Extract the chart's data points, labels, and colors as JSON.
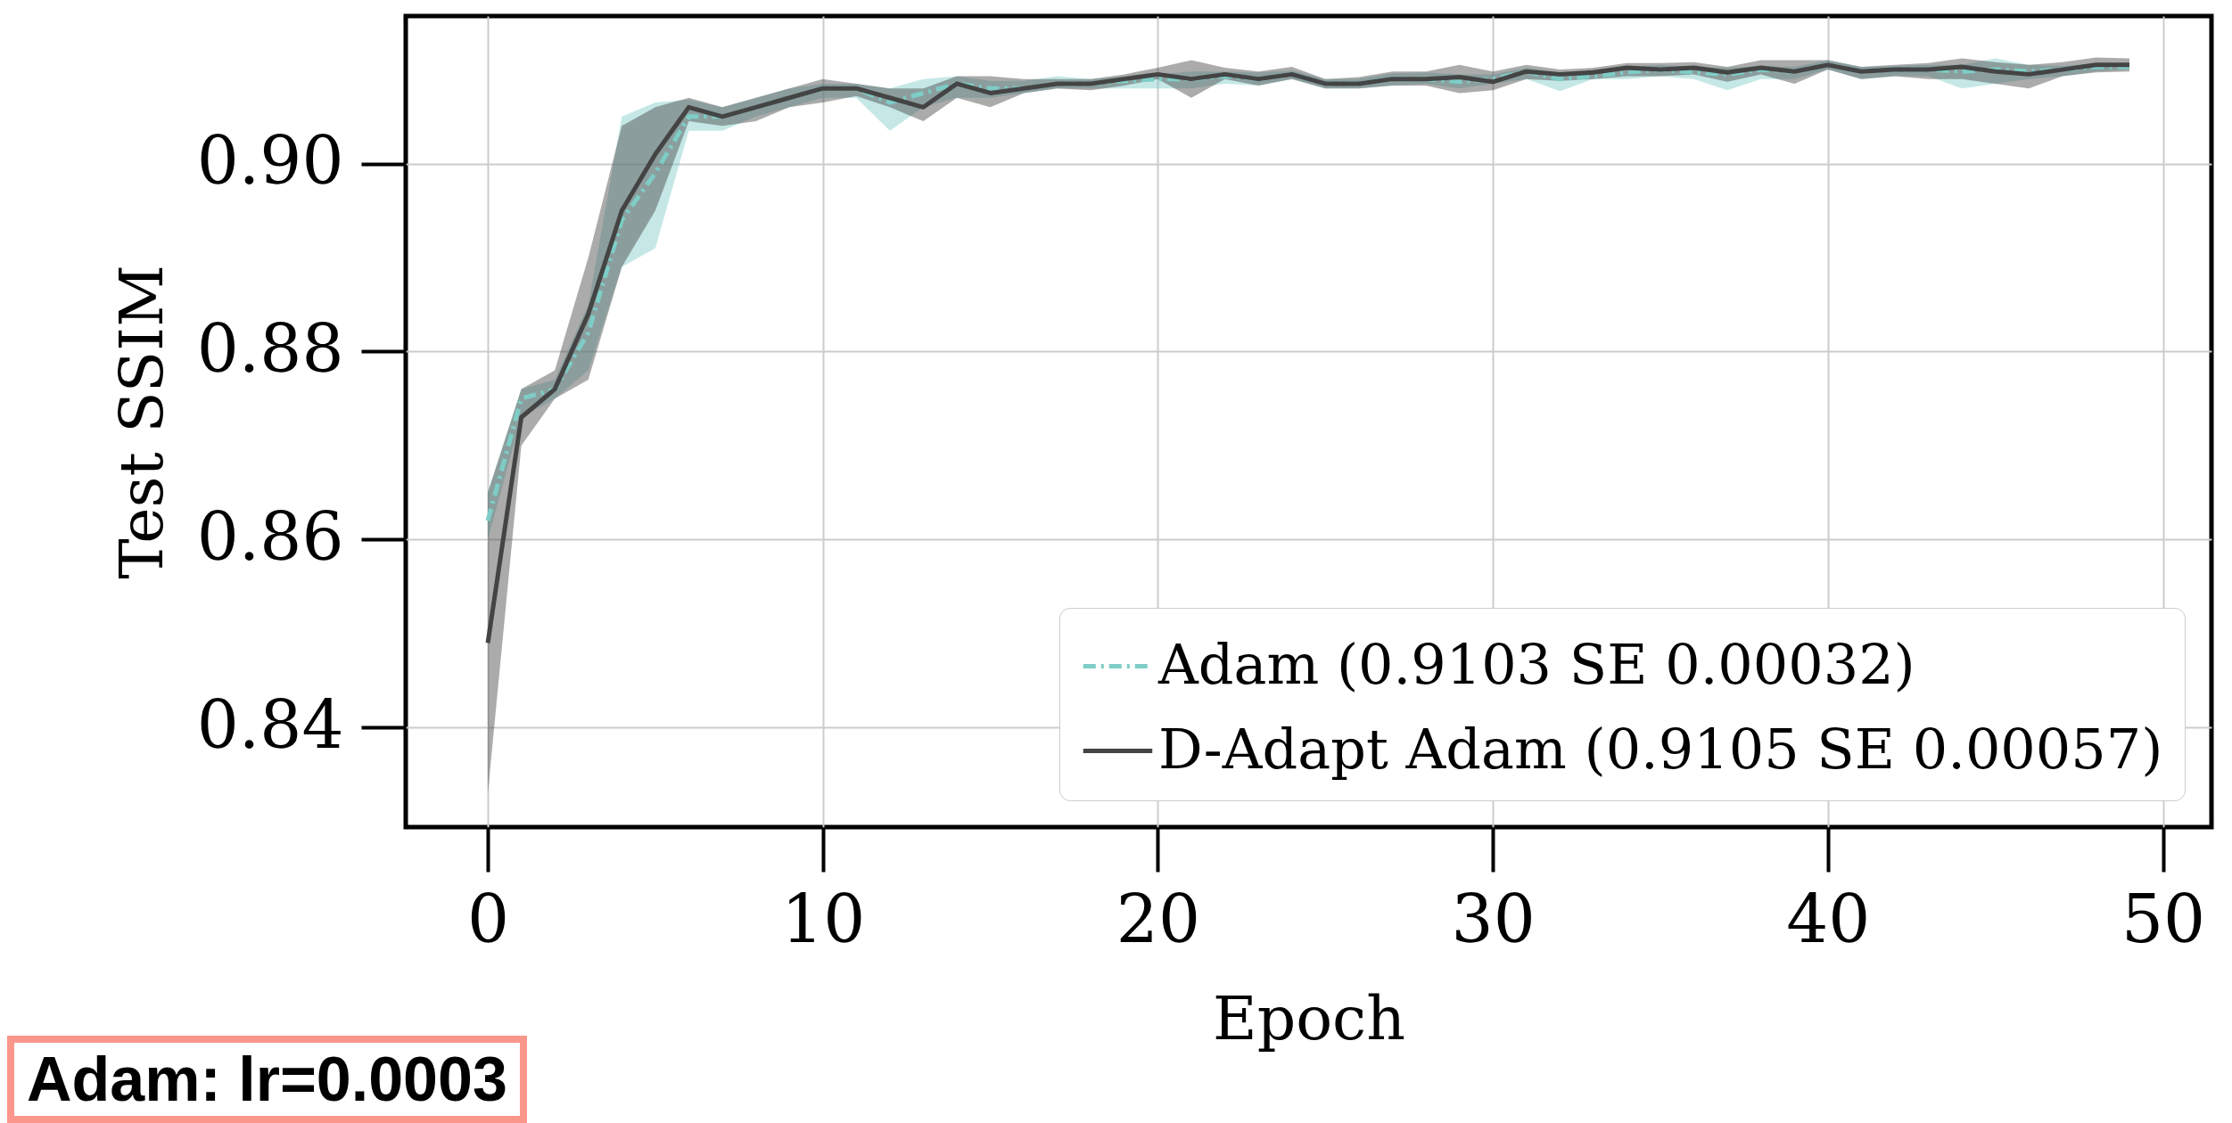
{
  "chart_data": {
    "type": "line",
    "xlabel": "Epoch",
    "ylabel": "Test SSIM",
    "x": [
      0,
      1,
      2,
      3,
      4,
      5,
      6,
      7,
      8,
      9,
      10,
      11,
      12,
      13,
      14,
      15,
      16,
      17,
      18,
      19,
      20,
      21,
      22,
      23,
      24,
      25,
      26,
      27,
      28,
      29,
      30,
      31,
      32,
      33,
      34,
      35,
      36,
      37,
      38,
      39,
      40,
      41,
      42,
      43,
      44,
      45,
      46,
      47,
      48,
      49
    ],
    "series": [
      {
        "name": "Adam (0.9103 SE 0.00032)",
        "color": "#7ecdc7",
        "line_style": "dashed",
        "values": [
          0.862,
          0.875,
          0.876,
          0.882,
          0.894,
          0.899,
          0.905,
          0.905,
          0.906,
          0.907,
          0.908,
          0.908,
          0.9065,
          0.9075,
          0.9085,
          0.908,
          0.908,
          0.9085,
          0.9085,
          0.9088,
          0.909,
          0.909,
          0.9093,
          0.909,
          0.9095,
          0.9085,
          0.9085,
          0.909,
          0.909,
          0.9087,
          0.909,
          0.9098,
          0.909,
          0.9093,
          0.9097,
          0.91,
          0.9097,
          0.9095,
          0.91,
          0.9098,
          0.9105,
          0.9098,
          0.91,
          0.91,
          0.9098,
          0.91,
          0.9098,
          0.91,
          0.9103,
          0.9103
        ],
        "lower": [
          0.86,
          0.873,
          0.875,
          0.878,
          0.889,
          0.891,
          0.9035,
          0.9035,
          0.905,
          0.906,
          0.907,
          0.907,
          0.9035,
          0.906,
          0.907,
          0.907,
          0.9075,
          0.908,
          0.908,
          0.908,
          0.908,
          0.908,
          0.9085,
          0.9083,
          0.909,
          0.908,
          0.908,
          0.9083,
          0.9085,
          0.908,
          0.9085,
          0.909,
          0.9077,
          0.909,
          0.909,
          0.9093,
          0.909,
          0.9078,
          0.909,
          0.909,
          0.91,
          0.909,
          0.9093,
          0.9093,
          0.908,
          0.9085,
          0.909,
          0.9093,
          0.9098,
          0.91
        ],
        "upper": [
          0.865,
          0.876,
          0.877,
          0.885,
          0.905,
          0.9065,
          0.9068,
          0.906,
          0.907,
          0.908,
          0.9085,
          0.9085,
          0.908,
          0.909,
          0.9093,
          0.9088,
          0.9088,
          0.9093,
          0.909,
          0.9093,
          0.9095,
          0.9098,
          0.9098,
          0.9097,
          0.9099,
          0.909,
          0.909,
          0.9096,
          0.9097,
          0.9095,
          0.9095,
          0.9102,
          0.9097,
          0.91,
          0.9103,
          0.9105,
          0.9103,
          0.9102,
          0.9104,
          0.9103,
          0.911,
          0.9103,
          0.9104,
          0.9105,
          0.9105,
          0.9112,
          0.9105,
          0.9104,
          0.9107,
          0.9107
        ]
      },
      {
        "name": "D-Adapt Adam (0.9105 SE 0.00057)",
        "color": "#444444",
        "line_style": "solid",
        "values": [
          0.849,
          0.873,
          0.876,
          0.884,
          0.895,
          0.901,
          0.906,
          0.905,
          0.906,
          0.907,
          0.908,
          0.908,
          0.907,
          0.906,
          0.9085,
          0.9075,
          0.908,
          0.9085,
          0.9085,
          0.909,
          0.9095,
          0.909,
          0.9095,
          0.909,
          0.9095,
          0.9085,
          0.9085,
          0.909,
          0.909,
          0.9092,
          0.9087,
          0.9098,
          0.9095,
          0.9097,
          0.9102,
          0.91,
          0.9102,
          0.9097,
          0.9102,
          0.9098,
          0.9105,
          0.9098,
          0.91,
          0.91,
          0.9103,
          0.9098,
          0.9095,
          0.91,
          0.9105,
          0.9105
        ],
        "lower": [
          0.833,
          0.87,
          0.875,
          0.877,
          0.889,
          0.895,
          0.9045,
          0.904,
          0.9045,
          0.906,
          0.9065,
          0.9072,
          0.906,
          0.9045,
          0.907,
          0.906,
          0.9075,
          0.908,
          0.9078,
          0.9083,
          0.909,
          0.907,
          0.909,
          0.9083,
          0.909,
          0.908,
          0.908,
          0.9083,
          0.9083,
          0.9075,
          0.9078,
          0.909,
          0.9088,
          0.909,
          0.9093,
          0.9093,
          0.9095,
          0.9087,
          0.9095,
          0.9085,
          0.91,
          0.909,
          0.9093,
          0.909,
          0.909,
          0.9085,
          0.908,
          0.9093,
          0.9097,
          0.9098
        ],
        "upper": [
          0.865,
          0.876,
          0.878,
          0.89,
          0.904,
          0.906,
          0.907,
          0.906,
          0.907,
          0.908,
          0.909,
          0.9085,
          0.908,
          0.908,
          0.9093,
          0.9093,
          0.909,
          0.909,
          0.909,
          0.9095,
          0.9102,
          0.911,
          0.9102,
          0.9098,
          0.9103,
          0.909,
          0.9092,
          0.9098,
          0.9098,
          0.9105,
          0.9098,
          0.9105,
          0.91,
          0.9102,
          0.9107,
          0.9107,
          0.9108,
          0.9103,
          0.911,
          0.911,
          0.911,
          0.9103,
          0.9105,
          0.9107,
          0.9112,
          0.9108,
          0.9105,
          0.9108,
          0.9113,
          0.9112
        ]
      }
    ],
    "xlim": [
      -2.45,
      51.45
    ],
    "xticks": [
      0,
      10,
      20,
      30,
      40,
      50
    ],
    "ylim": [
      0.8294,
      0.9157
    ],
    "yticks": [
      {
        "value": 0.84,
        "label": "0.84"
      },
      {
        "value": 0.86,
        "label": "0.86"
      },
      {
        "value": 0.88,
        "label": "0.88"
      },
      {
        "value": 0.9,
        "label": "0.90"
      }
    ],
    "grid": true,
    "legend": "bottom right",
    "marker": "none",
    "annotations": [
      "Adam: lr=0.0003"
    ]
  }
}
